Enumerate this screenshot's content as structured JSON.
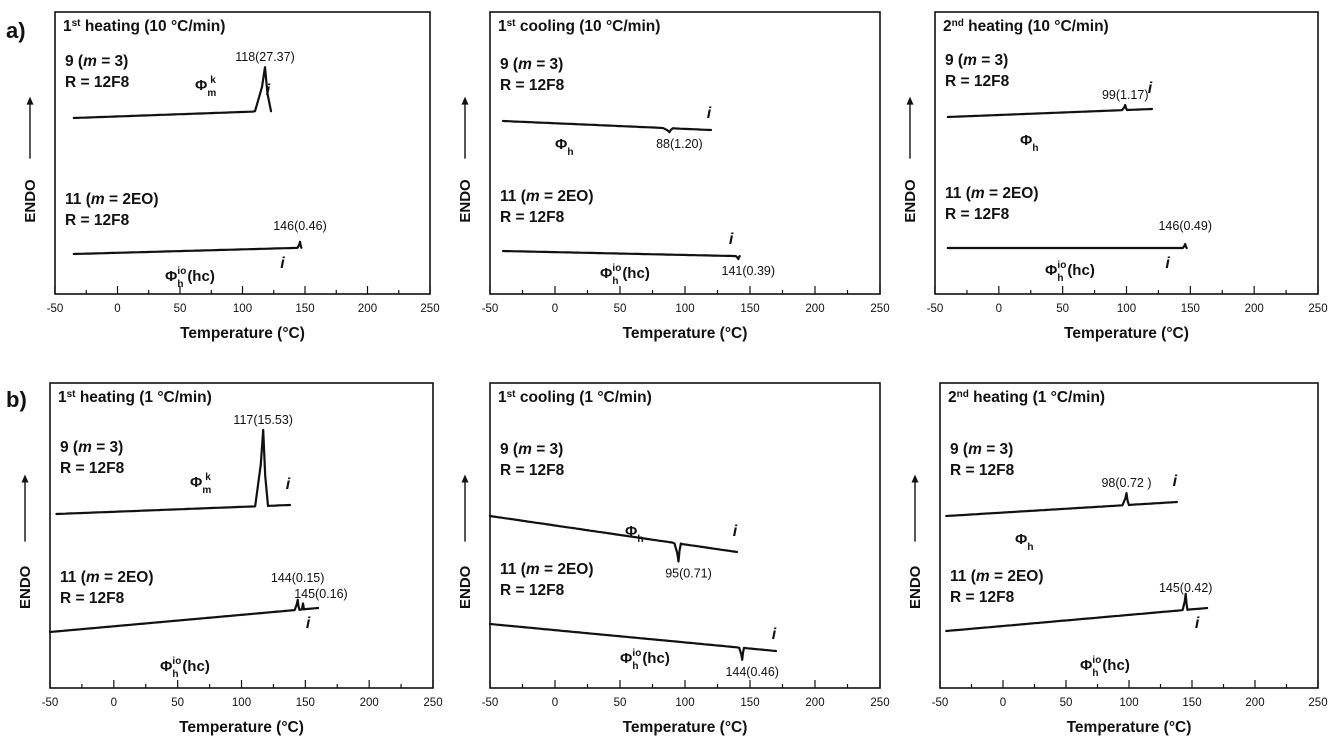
{
  "row_labels": [
    "a)",
    "b)"
  ],
  "chart_data": [
    {
      "type": "line",
      "row": "a)",
      "title": {
        "base": "1",
        "sup": "st",
        "text": " heating (10 °C/min)"
      },
      "ylabel": "ENDO",
      "xlabel": "Temperature (°C)",
      "xlim": [
        -50,
        250
      ],
      "xticks": [
        -50,
        0,
        50,
        100,
        150,
        200,
        250
      ],
      "series": [
        {
          "sample_line1": "9 (<i>m</i> = 3)",
          "sample_line2": "R = 12F8",
          "phase": {
            "base": "Φ",
            "sub": "m",
            "sup": "k"
          },
          "peak": {
            "T": 118,
            "dH": "27.37",
            "direction": "endo",
            "label": "118(27.37)"
          },
          "isotropic": "i",
          "x_range": [
            -35,
            122
          ]
        },
        {
          "sample_line1": "11 (<i>m</i> = 2EO)",
          "sample_line2": "R = 12F8",
          "phase": {
            "base": "Φ",
            "sub": "h",
            "sup": "io",
            "suffix": "(hc)"
          },
          "peak": {
            "T": 146,
            "dH": "0.46",
            "direction": "endo",
            "label": "146(0.46)"
          },
          "isotropic": "i",
          "x_range": [
            -35,
            140
          ]
        }
      ]
    },
    {
      "type": "line",
      "row": "a)",
      "title": {
        "base": "1",
        "sup": "st",
        "text": " cooling (10 °C/min)"
      },
      "ylabel": "ENDO",
      "xlabel": "Temperature (°C)",
      "xlim": [
        -50,
        250
      ],
      "xticks": [
        -50,
        0,
        50,
        100,
        150,
        200,
        250
      ],
      "series": [
        {
          "sample_line1": "9 (<i>m</i> = 3)",
          "sample_line2": "R = 12F8",
          "phase": {
            "base": "Φ",
            "sub": "h"
          },
          "peak": {
            "T": 88,
            "dH": "1.20",
            "direction": "exo",
            "label": "88(1.20)"
          },
          "isotropic": "i",
          "x_range": [
            -40,
            120
          ]
        },
        {
          "sample_line1": "11 (<i>m</i> = 2EO)",
          "sample_line2": "R = 12F8",
          "phase": {
            "base": "Φ",
            "sub": "h",
            "sup": "io",
            "suffix": "(hc)"
          },
          "peak": {
            "T": 141,
            "dH": "0.39",
            "direction": "exo",
            "label": "141(0.39)"
          },
          "isotropic": "i",
          "x_range": [
            -40,
            137
          ]
        }
      ]
    },
    {
      "type": "line",
      "row": "a)",
      "title": {
        "base": "2",
        "sup": "nd",
        "text": " heating (10 °C/min)"
      },
      "ylabel": "ENDO",
      "xlabel": "Temperature (°C)",
      "xlim": [
        -50,
        250
      ],
      "xticks": [
        -50,
        0,
        50,
        100,
        150,
        200,
        250
      ],
      "series": [
        {
          "sample_line1": "9 (<i>m</i> = 3)",
          "sample_line2": "R = 12F8",
          "phase": {
            "base": "Φ",
            "sub": "h"
          },
          "peak": {
            "T": 99,
            "dH": "1.17",
            "direction": "endo",
            "label": "99(1.17)"
          },
          "isotropic": "i",
          "x_range": [
            -40,
            120
          ]
        },
        {
          "sample_line1": "11 (<i>m</i> = 2EO)",
          "sample_line2": "R = 12F8",
          "phase": {
            "base": "Φ",
            "sub": "h",
            "sup": "io",
            "suffix": "(hc)"
          },
          "peak": {
            "T": 146,
            "dH": "0.49",
            "direction": "endo",
            "label": "146(0.49)"
          },
          "isotropic": "i",
          "x_range": [
            -40,
            140
          ]
        }
      ]
    },
    {
      "type": "line",
      "row": "b)",
      "title": {
        "base": "1",
        "sup": "st",
        "text": " heating (1 °C/min)"
      },
      "ylabel": "ENDO",
      "xlabel": "Temperature (°C)",
      "xlim": [
        -50,
        250
      ],
      "xticks": [
        -50,
        0,
        50,
        100,
        150,
        200,
        250
      ],
      "series": [
        {
          "sample_line1": "9 (<i>m</i> = 3)",
          "sample_line2": "R = 12F8",
          "phase": {
            "base": "Φ",
            "sub": "m",
            "sup": "k"
          },
          "peak": {
            "T": 117,
            "dH": "15.53",
            "direction": "endo",
            "label": "117(15.53)"
          },
          "isotropic": "i",
          "x_range": [
            -45,
            138
          ]
        },
        {
          "sample_line1": "11 (<i>m</i> = 2EO)",
          "sample_line2": "R = 12F8",
          "phase": {
            "base": "Φ",
            "sub": "h",
            "sup": "io",
            "suffix": "(hc)"
          },
          "peak": {
            "T": 144,
            "dH": "0.15",
            "direction": "endo",
            "label": "144(0.15)"
          },
          "peak2": {
            "T": 145,
            "dH": "0.16",
            "label": "145(0.16)"
          },
          "isotropic": "i",
          "x_range": [
            -50,
            160
          ]
        }
      ]
    },
    {
      "type": "line",
      "row": "b)",
      "title": {
        "base": "1",
        "sup": "st",
        "text": " cooling (1 °C/min)"
      },
      "ylabel": "ENDO",
      "xlabel": "Temperature (°C)",
      "xlim": [
        -50,
        250
      ],
      "xticks": [
        -50,
        0,
        50,
        100,
        150,
        200,
        250
      ],
      "series": [
        {
          "sample_line1": "9 (<i>m</i> = 3)",
          "sample_line2": "R = 12F8",
          "phase": {
            "base": "Φ",
            "sub": "h"
          },
          "peak": {
            "T": 95,
            "dH": "0.71",
            "direction": "exo",
            "label": "95(0.71)"
          },
          "isotropic": "i",
          "x_range": [
            -50,
            140
          ]
        },
        {
          "sample_line1": "11 (<i>m</i> = 2EO)",
          "sample_line2": "R = 12F8",
          "phase": {
            "base": "Φ",
            "sub": "h",
            "sup": "io",
            "suffix": "(hc)"
          },
          "peak": {
            "T": 144,
            "dH": "0.46",
            "direction": "exo",
            "label": "144(0.46)"
          },
          "isotropic": "i",
          "x_range": [
            -50,
            170
          ]
        }
      ]
    },
    {
      "type": "line",
      "row": "b)",
      "title": {
        "base": "2",
        "sup": "nd",
        "text": " heating (1 °C/min)"
      },
      "ylabel": "ENDO",
      "xlabel": "Temperature (°C)",
      "xlim": [
        -50,
        250
      ],
      "xticks": [
        -50,
        0,
        50,
        100,
        150,
        200,
        250
      ],
      "series": [
        {
          "sample_line1": "9 (<i>m</i> = 3)",
          "sample_line2": "R = 12F8",
          "phase": {
            "base": "Φ",
            "sub": "h"
          },
          "peak": {
            "T": 98,
            "dH": "0.72",
            "direction": "endo",
            "label": "98(0.72 )"
          },
          "isotropic": "i",
          "x_range": [
            -45,
            138
          ]
        },
        {
          "sample_line1": "11 (<i>m</i> = 2EO)",
          "sample_line2": "R = 12F8",
          "phase": {
            "base": "Φ",
            "sub": "h",
            "sup": "io",
            "suffix": "(hc)"
          },
          "peak": {
            "T": 145,
            "dH": "0.42",
            "direction": "endo",
            "label": "145(0.42)"
          },
          "isotropic": "i",
          "x_range": [
            -45,
            162
          ]
        }
      ]
    }
  ]
}
